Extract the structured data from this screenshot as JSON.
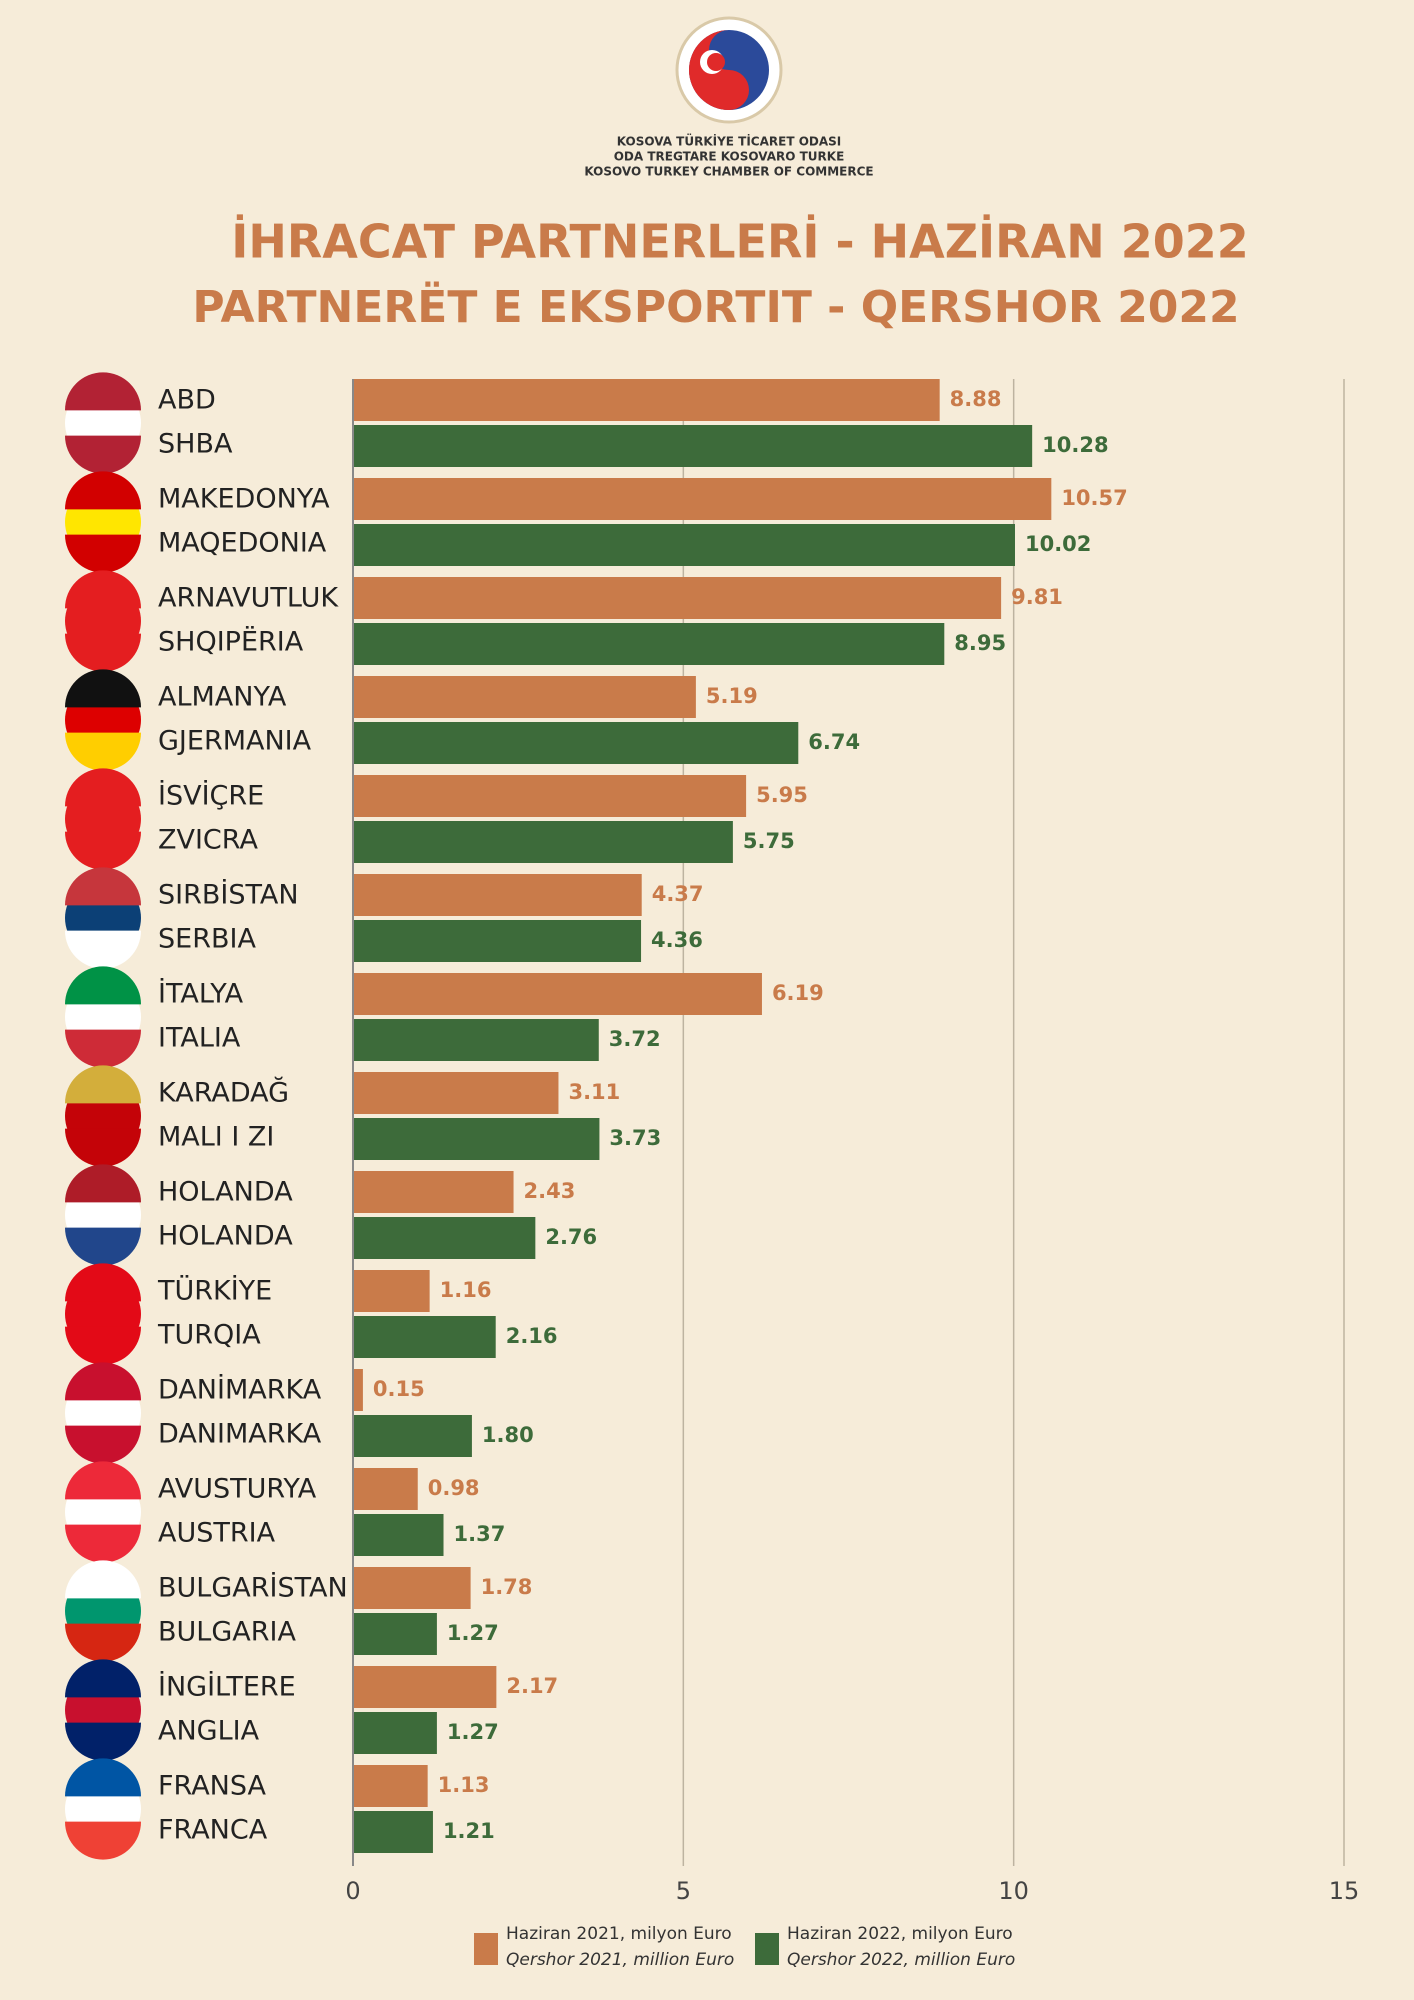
{
  "header": {
    "org": [
      "KOSOVA TÜRKİYE TİCARET ODASI",
      "ODA TREGTARE KOSOVARO TURKE",
      "KOSOVO TURKEY CHAMBER OF COMMERCE"
    ]
  },
  "chart_data": {
    "type": "barh",
    "title": [
      "İHRACAT PARTNERLERİ - HAZİRAN 2022",
      "PARTNERËT E EKSPORTIT - QERSHOR 2022"
    ],
    "categories": [
      [
        "ABD",
        "SHBA"
      ],
      [
        "MAKEDONYA",
        "MAQEDONIA"
      ],
      [
        "ARNAVUTLUK",
        "SHQIPËRIA"
      ],
      [
        "ALMANYA",
        "GJERMANIA"
      ],
      [
        "İSVİÇRE",
        "ZVICRA"
      ],
      [
        "SIRBİSTAN",
        "SERBIA"
      ],
      [
        "İTALYA",
        "ITALIA"
      ],
      [
        "KARADAĞ",
        "MALI I ZI"
      ],
      [
        "HOLANDA",
        "HOLANDA"
      ],
      [
        "TÜRKİYE",
        "TURQIA"
      ],
      [
        "DANİMARKA",
        "DANIMARKA"
      ],
      [
        "AVUSTURYA",
        "AUSTRIA"
      ],
      [
        "BULGARİSTAN",
        "BULGARIA"
      ],
      [
        "İNGİLTERE",
        "ANGLIA"
      ],
      [
        "FRANSA",
        "FRANCA"
      ]
    ],
    "series": [
      {
        "name": [
          "Haziran  2021, milyon Euro",
          "Qershor 2021, million Euro"
        ],
        "color": "#c97b4a",
        "values": [
          8.88,
          10.57,
          9.81,
          5.19,
          5.95,
          4.37,
          6.19,
          3.11,
          2.43,
          1.16,
          0.15,
          0.98,
          1.78,
          2.17,
          1.13
        ],
        "value_labels": [
          "8.88",
          "10.57",
          "9.81",
          "5.19",
          "5.95",
          "4.37",
          "6.19",
          "3.11",
          "2.43",
          "1.16",
          "0.15",
          "0.98",
          "1.78",
          "2.17",
          "1.13"
        ]
      },
      {
        "name": [
          "Haziran 2022, milyon Euro",
          "Qershor 2022, million Euro"
        ],
        "color": "#3d6b3a",
        "values": [
          10.28,
          10.02,
          8.95,
          6.74,
          5.75,
          4.36,
          3.72,
          3.73,
          2.76,
          2.16,
          1.8,
          1.37,
          1.27,
          1.27,
          1.21
        ],
        "value_labels": [
          "10.28",
          "10.02",
          "8.95",
          "6.74",
          "5.75",
          "4.36",
          "3.72",
          "3.73",
          "2.76",
          "2.16",
          "1.80",
          "1.37",
          "1.27",
          "1.27",
          "1.21"
        ]
      }
    ],
    "xlim": [
      0,
      15
    ],
    "xticks": [
      0,
      5,
      10,
      15
    ],
    "grid": true
  }
}
